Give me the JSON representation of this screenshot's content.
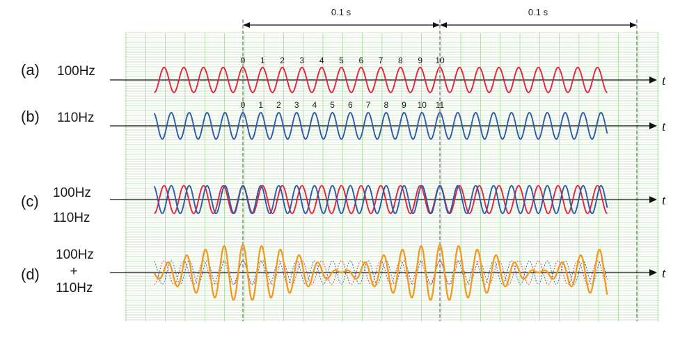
{
  "rows": {
    "a": {
      "letter": "(a)",
      "freq": "100Hz",
      "axis_var": "t"
    },
    "b": {
      "letter": "(b)",
      "freq": "110Hz",
      "axis_var": "t"
    },
    "c": {
      "letter": "(c)",
      "freq_top": "100Hz",
      "freq_bottom": "110Hz",
      "axis_var": "t"
    },
    "d": {
      "letter": "(d)",
      "freq_top": "100Hz",
      "plus": "+",
      "freq_bottom": "110Hz",
      "axis_var": "t"
    }
  },
  "interval_labels": [
    "0.1 s",
    "0.1 s"
  ],
  "ticks_a": [
    "0",
    "1",
    "2",
    "3",
    "4",
    "5",
    "6",
    "7",
    "8",
    "9",
    "10"
  ],
  "ticks_b": [
    "0",
    "1",
    "2",
    "3",
    "4",
    "5",
    "6",
    "7",
    "8",
    "9",
    "10",
    "11"
  ],
  "colors": {
    "wave_100hz": "#e8213f",
    "wave_110hz": "#2a5bab",
    "wave_sum": "#f29a1f",
    "grid_major": "#8ccc7c",
    "grid_minor": "#c8e6bf",
    "axis": "#1a1a1a"
  },
  "signal": {
    "f1_hz": 100,
    "f2_hz": 110,
    "t_start_s": -0.045,
    "t_end_s": 0.185,
    "interval_s": 0.1
  }
}
